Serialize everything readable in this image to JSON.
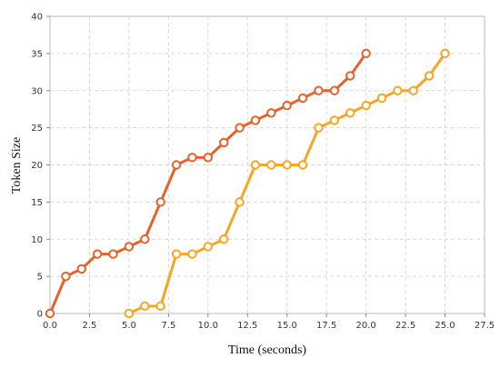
{
  "chart_data": {
    "type": "line",
    "xlabel": "Time (seconds)",
    "ylabel": "Token Size",
    "xlim": [
      0,
      27.5
    ],
    "ylim": [
      0,
      40
    ],
    "x_ticks": [
      0.0,
      2.5,
      5.0,
      7.5,
      10.0,
      12.5,
      15.0,
      17.5,
      20.0,
      22.5,
      25.0,
      27.5
    ],
    "y_ticks": [
      0,
      5,
      10,
      15,
      20,
      25,
      30,
      35,
      40
    ],
    "grid": true,
    "series": [
      {
        "color": "#e8612c",
        "points": [
          [
            0,
            0
          ],
          [
            1,
            5
          ],
          [
            2,
            6
          ],
          [
            3,
            8
          ],
          [
            4,
            8
          ],
          [
            5,
            9
          ],
          [
            6,
            10
          ],
          [
            7,
            15
          ],
          [
            8,
            20
          ],
          [
            9,
            21
          ],
          [
            10,
            21
          ],
          [
            11,
            23
          ],
          [
            12,
            25
          ],
          [
            13,
            26
          ],
          [
            14,
            27
          ],
          [
            15,
            28
          ],
          [
            16,
            29
          ],
          [
            17,
            30
          ],
          [
            18,
            30
          ],
          [
            19,
            32
          ],
          [
            20,
            35
          ]
        ]
      },
      {
        "color": "#f5a623",
        "points": [
          [
            5,
            0
          ],
          [
            6,
            1
          ],
          [
            7,
            1
          ],
          [
            8,
            8
          ],
          [
            9,
            8
          ],
          [
            10,
            9
          ],
          [
            11,
            10
          ],
          [
            12,
            15
          ],
          [
            13,
            20
          ],
          [
            14,
            20
          ],
          [
            15,
            20
          ],
          [
            16,
            20
          ],
          [
            17,
            25
          ],
          [
            18,
            26
          ],
          [
            19,
            27
          ],
          [
            20,
            28
          ],
          [
            21,
            29
          ],
          [
            22,
            30
          ],
          [
            23,
            30
          ],
          [
            24,
            32
          ],
          [
            25,
            35
          ]
        ]
      }
    ]
  }
}
